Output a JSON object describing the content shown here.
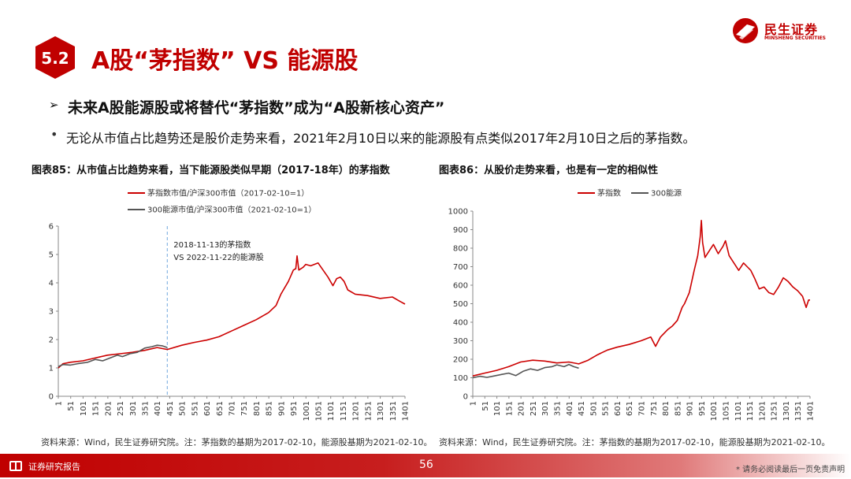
{
  "brand": {
    "name": "民生证券",
    "sub": "MINSHENG SECURITIES",
    "color": "#c00000"
  },
  "section": {
    "number": "5.2",
    "title": "A股“茅指数” VS 能源股"
  },
  "point": {
    "arrow": "➢",
    "text": "未来A股能源股或将替代“茅指数”成为“A股新核心资产”"
  },
  "bullet": {
    "dot": "•",
    "text": "无论从市值占比趋势还是股价走势来看，2021年2月10日以来的能源股有点类似2017年2月10日之后的茅指数。"
  },
  "figures": {
    "left_title": "图表85：从市值占比趋势来看，当下能源股类似早期（2017-18年）的茅指数",
    "right_title": "图表86：从股价走势来看，也是有一定的相似性",
    "left_source": "资料来源：Wind，民生证券研究院。注：茅指数的基期为2017-02-10，能源股基期为2021-02-10。",
    "right_source": "资料来源：Wind，民生证券研究院。注：茅指数的基期为2017-02-10，能源股基期为2021-02-10。"
  },
  "footer": {
    "label": "证券研究报告",
    "page": "56",
    "disclaimer": "* 请务必阅读最后一页免责声明"
  },
  "colors": {
    "accent": "#c00000",
    "series_red": "#cc0000",
    "series_gray": "#555555",
    "annotation_line": "#6fa8dc"
  },
  "chart_data": [
    {
      "type": "line",
      "title": "",
      "xlabel": "",
      "ylabel": "",
      "xlim": [
        1,
        1401
      ],
      "ylim": [
        0,
        6
      ],
      "yticks": [
        "0",
        "1",
        "2",
        "3",
        "4",
        "5",
        "6"
      ],
      "xticks": [
        "1",
        "51",
        "101",
        "151",
        "201",
        "251",
        "301",
        "351",
        "401",
        "451",
        "501",
        "551",
        "601",
        "651",
        "701",
        "751",
        "801",
        "851",
        "901",
        "951",
        "1001",
        "1051",
        "1101",
        "1151",
        "1201",
        "1251",
        "1301",
        "1351",
        "1401"
      ],
      "legend_position": "top",
      "grid": false,
      "annotation": {
        "x": 441,
        "lines": [
          "2018-11-13的茅指数",
          "VS 2022-11-22的能源股"
        ]
      },
      "series": [
        {
          "name": "茅指数市值/沪深300市值（2017-02-10=1）",
          "color": "#cc0000",
          "points": [
            [
              1,
              1.0
            ],
            [
              20,
              1.15
            ],
            [
              50,
              1.2
            ],
            [
              100,
              1.25
            ],
            [
              150,
              1.35
            ],
            [
              200,
              1.45
            ],
            [
              250,
              1.5
            ],
            [
              300,
              1.55
            ],
            [
              350,
              1.62
            ],
            [
              400,
              1.72
            ],
            [
              441,
              1.65
            ],
            [
              500,
              1.8
            ],
            [
              550,
              1.9
            ],
            [
              600,
              1.98
            ],
            [
              650,
              2.1
            ],
            [
              700,
              2.3
            ],
            [
              750,
              2.5
            ],
            [
              800,
              2.7
            ],
            [
              850,
              2.95
            ],
            [
              880,
              3.2
            ],
            [
              900,
              3.6
            ],
            [
              930,
              4.05
            ],
            [
              950,
              4.45
            ],
            [
              960,
              4.5
            ],
            [
              965,
              4.95
            ],
            [
              972,
              4.45
            ],
            [
              990,
              4.55
            ],
            [
              1000,
              4.65
            ],
            [
              1020,
              4.6
            ],
            [
              1050,
              4.7
            ],
            [
              1070,
              4.45
            ],
            [
              1090,
              4.2
            ],
            [
              1110,
              3.9
            ],
            [
              1125,
              4.15
            ],
            [
              1140,
              4.2
            ],
            [
              1155,
              4.05
            ],
            [
              1170,
              3.75
            ],
            [
              1200,
              3.6
            ],
            [
              1250,
              3.55
            ],
            [
              1300,
              3.45
            ],
            [
              1350,
              3.5
            ],
            [
              1380,
              3.35
            ],
            [
              1401,
              3.25
            ]
          ]
        },
        {
          "name": "300能源市值/沪深300市值（2021-02-10=1）",
          "color": "#555555",
          "points": [
            [
              1,
              1.05
            ],
            [
              20,
              1.12
            ],
            [
              50,
              1.1
            ],
            [
              80,
              1.15
            ],
            [
              120,
              1.2
            ],
            [
              150,
              1.3
            ],
            [
              180,
              1.25
            ],
            [
              210,
              1.35
            ],
            [
              240,
              1.45
            ],
            [
              260,
              1.4
            ],
            [
              290,
              1.5
            ],
            [
              320,
              1.55
            ],
            [
              350,
              1.7
            ],
            [
              380,
              1.75
            ],
            [
              400,
              1.8
            ],
            [
              420,
              1.78
            ],
            [
              441,
              1.72
            ]
          ]
        }
      ]
    },
    {
      "type": "line",
      "title": "",
      "xlabel": "",
      "ylabel": "",
      "xlim": [
        1,
        1401
      ],
      "ylim": [
        0,
        1000
      ],
      "yticks": [
        "0",
        "100",
        "200",
        "300",
        "400",
        "500",
        "600",
        "700",
        "800",
        "900",
        "1000"
      ],
      "xticks": [
        "1",
        "51",
        "101",
        "151",
        "201",
        "251",
        "301",
        "351",
        "401",
        "451",
        "501",
        "551",
        "601",
        "651",
        "701",
        "751",
        "801",
        "851",
        "901",
        "951",
        "1001",
        "1051",
        "1101",
        "1151",
        "1201",
        "1251",
        "1301",
        "1351",
        "1401"
      ],
      "legend_position": "top",
      "grid": false,
      "series": [
        {
          "name": "茅指数",
          "color": "#cc0000",
          "points": [
            [
              1,
              110
            ],
            [
              50,
              125
            ],
            [
              100,
              140
            ],
            [
              150,
              160
            ],
            [
              200,
              185
            ],
            [
              250,
              195
            ],
            [
              300,
              190
            ],
            [
              350,
              180
            ],
            [
              400,
              185
            ],
            [
              441,
              175
            ],
            [
              480,
              195
            ],
            [
              520,
              225
            ],
            [
              560,
              250
            ],
            [
              600,
              265
            ],
            [
              650,
              280
            ],
            [
              700,
              300
            ],
            [
              740,
              320
            ],
            [
              760,
              270
            ],
            [
              780,
              320
            ],
            [
              810,
              360
            ],
            [
              830,
              380
            ],
            [
              850,
              410
            ],
            [
              870,
              480
            ],
            [
              880,
              500
            ],
            [
              900,
              560
            ],
            [
              920,
              680
            ],
            [
              935,
              760
            ],
            [
              945,
              860
            ],
            [
              950,
              950
            ],
            [
              955,
              830
            ],
            [
              965,
              750
            ],
            [
              985,
              790
            ],
            [
              1000,
              820
            ],
            [
              1020,
              770
            ],
            [
              1040,
              810
            ],
            [
              1050,
              840
            ],
            [
              1065,
              760
            ],
            [
              1085,
              720
            ],
            [
              1105,
              680
            ],
            [
              1125,
              720
            ],
            [
              1140,
              700
            ],
            [
              1155,
              680
            ],
            [
              1170,
              640
            ],
            [
              1190,
              580
            ],
            [
              1210,
              590
            ],
            [
              1230,
              560
            ],
            [
              1250,
              550
            ],
            [
              1270,
              590
            ],
            [
              1290,
              640
            ],
            [
              1310,
              620
            ],
            [
              1330,
              590
            ],
            [
              1350,
              570
            ],
            [
              1370,
              540
            ],
            [
              1385,
              480
            ],
            [
              1395,
              520
            ],
            [
              1401,
              520
            ]
          ]
        },
        {
          "name": "300能源",
          "color": "#555555",
          "points": [
            [
              1,
              100
            ],
            [
              30,
              108
            ],
            [
              60,
              102
            ],
            [
              90,
              110
            ],
            [
              120,
              118
            ],
            [
              150,
              125
            ],
            [
              180,
              112
            ],
            [
              210,
              135
            ],
            [
              240,
              148
            ],
            [
              270,
              140
            ],
            [
              300,
              155
            ],
            [
              330,
              160
            ],
            [
              350,
              170
            ],
            [
              380,
              160
            ],
            [
              400,
              172
            ],
            [
              420,
              160
            ],
            [
              441,
              152
            ]
          ]
        }
      ]
    }
  ]
}
